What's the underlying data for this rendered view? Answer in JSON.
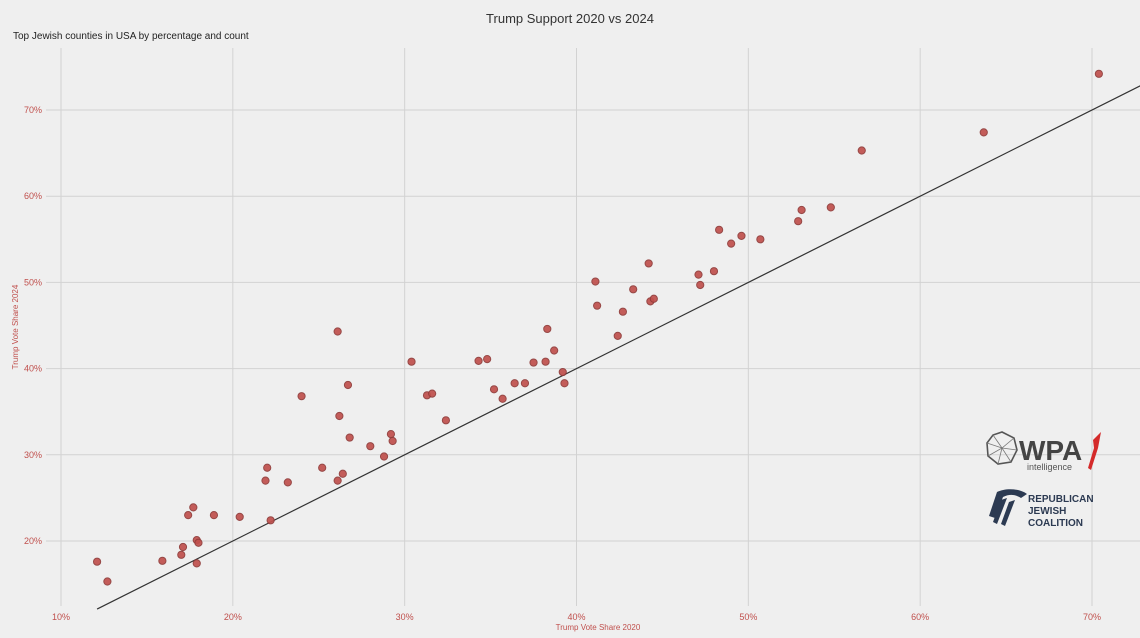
{
  "chart_data": {
    "type": "scatter",
    "title": "Trump Support 2020 vs 2024",
    "subtitle": "Top Jewish counties in USA by percentage and count",
    "xlabel": "Trump Vote Share 2020",
    "ylabel": "Trump Vote Share 2024",
    "xlim": [
      0.1,
      0.73
    ],
    "ylim": [
      0.125,
      0.76
    ],
    "x_ticks": [
      0.1,
      0.2,
      0.3,
      0.4,
      0.5,
      0.6,
      0.7
    ],
    "x_tick_labels": [
      "10%",
      "20%",
      "30%",
      "40%",
      "50%",
      "60%",
      "70%"
    ],
    "y_ticks": [
      0.2,
      0.3,
      0.4,
      0.5,
      0.6,
      0.7
    ],
    "y_tick_labels": [
      "20%",
      "30%",
      "40%",
      "50%",
      "60%",
      "70%"
    ],
    "grid": true,
    "reference_line": "y = x",
    "point_color": "#c0504d",
    "points": [
      {
        "x": 0.121,
        "y": 0.176
      },
      {
        "x": 0.127,
        "y": 0.153
      },
      {
        "x": 0.159,
        "y": 0.177
      },
      {
        "x": 0.17,
        "y": 0.184
      },
      {
        "x": 0.171,
        "y": 0.193
      },
      {
        "x": 0.174,
        "y": 0.23
      },
      {
        "x": 0.177,
        "y": 0.239
      },
      {
        "x": 0.179,
        "y": 0.201
      },
      {
        "x": 0.18,
        "y": 0.198
      },
      {
        "x": 0.179,
        "y": 0.174
      },
      {
        "x": 0.189,
        "y": 0.23
      },
      {
        "x": 0.204,
        "y": 0.228
      },
      {
        "x": 0.219,
        "y": 0.27
      },
      {
        "x": 0.22,
        "y": 0.285
      },
      {
        "x": 0.222,
        "y": 0.224
      },
      {
        "x": 0.232,
        "y": 0.268
      },
      {
        "x": 0.24,
        "y": 0.368
      },
      {
        "x": 0.252,
        "y": 0.285
      },
      {
        "x": 0.261,
        "y": 0.443
      },
      {
        "x": 0.262,
        "y": 0.345
      },
      {
        "x": 0.261,
        "y": 0.27
      },
      {
        "x": 0.264,
        "y": 0.278
      },
      {
        "x": 0.267,
        "y": 0.381
      },
      {
        "x": 0.268,
        "y": 0.32
      },
      {
        "x": 0.28,
        "y": 0.31
      },
      {
        "x": 0.288,
        "y": 0.298
      },
      {
        "x": 0.292,
        "y": 0.324
      },
      {
        "x": 0.293,
        "y": 0.316
      },
      {
        "x": 0.304,
        "y": 0.408
      },
      {
        "x": 0.313,
        "y": 0.369
      },
      {
        "x": 0.316,
        "y": 0.371
      },
      {
        "x": 0.324,
        "y": 0.34
      },
      {
        "x": 0.343,
        "y": 0.409
      },
      {
        "x": 0.348,
        "y": 0.411
      },
      {
        "x": 0.352,
        "y": 0.376
      },
      {
        "x": 0.357,
        "y": 0.365
      },
      {
        "x": 0.364,
        "y": 0.383
      },
      {
        "x": 0.37,
        "y": 0.383
      },
      {
        "x": 0.375,
        "y": 0.407
      },
      {
        "x": 0.382,
        "y": 0.408
      },
      {
        "x": 0.383,
        "y": 0.446
      },
      {
        "x": 0.387,
        "y": 0.421
      },
      {
        "x": 0.392,
        "y": 0.396
      },
      {
        "x": 0.393,
        "y": 0.383
      },
      {
        "x": 0.411,
        "y": 0.501
      },
      {
        "x": 0.412,
        "y": 0.473
      },
      {
        "x": 0.424,
        "y": 0.438
      },
      {
        "x": 0.427,
        "y": 0.466
      },
      {
        "x": 0.433,
        "y": 0.492
      },
      {
        "x": 0.442,
        "y": 0.522
      },
      {
        "x": 0.443,
        "y": 0.478
      },
      {
        "x": 0.445,
        "y": 0.481
      },
      {
        "x": 0.471,
        "y": 0.509
      },
      {
        "x": 0.472,
        "y": 0.497
      },
      {
        "x": 0.48,
        "y": 0.513
      },
      {
        "x": 0.483,
        "y": 0.561
      },
      {
        "x": 0.49,
        "y": 0.545
      },
      {
        "x": 0.496,
        "y": 0.554
      },
      {
        "x": 0.507,
        "y": 0.55
      },
      {
        "x": 0.529,
        "y": 0.571
      },
      {
        "x": 0.531,
        "y": 0.584
      },
      {
        "x": 0.548,
        "y": 0.587
      },
      {
        "x": 0.566,
        "y": 0.653
      },
      {
        "x": 0.637,
        "y": 0.674
      },
      {
        "x": 0.704,
        "y": 0.742
      }
    ]
  },
  "logos": {
    "wpa": {
      "name": "WPA",
      "sub": "intelligence",
      "accent": "#d42a2a"
    },
    "rjc": {
      "line1": "REPUBLICAN",
      "line2": "JEWISH",
      "line3": "COALITION",
      "color": "#2c3a52"
    }
  }
}
